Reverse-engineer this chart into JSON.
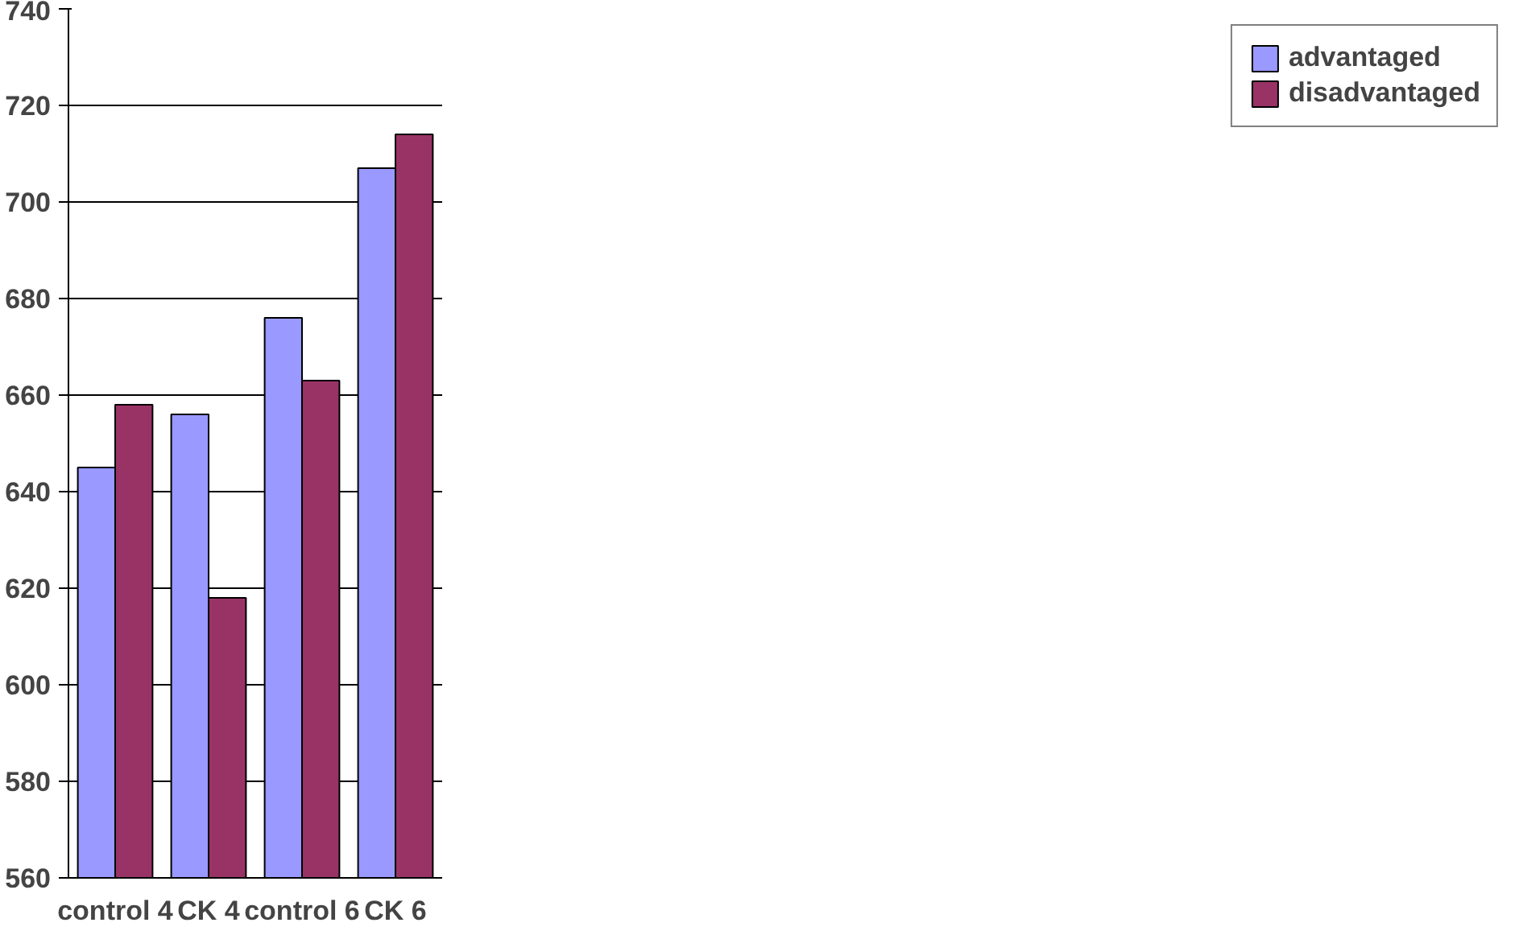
{
  "chart_data": {
    "type": "bar",
    "categories": [
      "control 4",
      "CK 4",
      "control 6",
      "CK 6"
    ],
    "series": [
      {
        "name": "advantaged",
        "color": "#9999ff",
        "values": [
          645,
          656,
          676,
          707
        ]
      },
      {
        "name": "disadvantaged",
        "color": "#993366",
        "values": [
          658,
          618,
          663,
          714
        ]
      }
    ],
    "ylim": [
      560,
      740
    ],
    "yticks": [
      560,
      580,
      600,
      620,
      640,
      660,
      680,
      700,
      720,
      740
    ],
    "grid": "y",
    "legend": "right"
  }
}
